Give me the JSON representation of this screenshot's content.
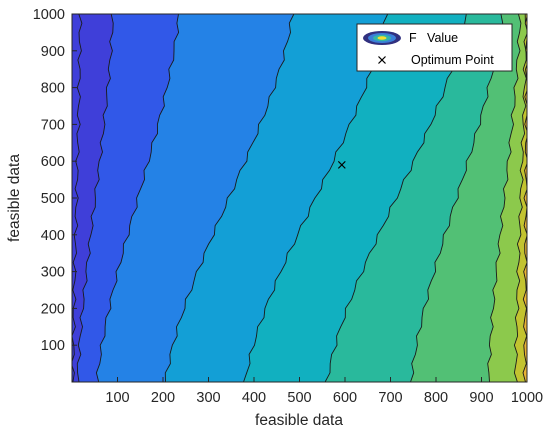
{
  "chart_data": {
    "type": "contour",
    "xlabel": "feasible data",
    "ylabel": "feasible data",
    "xlim": [
      0,
      1000
    ],
    "ylim": [
      0,
      1000
    ],
    "xticks": [
      100,
      200,
      300,
      400,
      500,
      600,
      700,
      800,
      900,
      1000
    ],
    "yticks": [
      100,
      200,
      300,
      400,
      500,
      600,
      700,
      800,
      900,
      1000
    ],
    "grid": false,
    "colormap": "parula",
    "legend": {
      "placement": "top-right",
      "entries": [
        {
          "label": "F   Value",
          "marker": "filled-contour"
        },
        {
          "label": "Optimum Point",
          "marker": "x"
        }
      ]
    },
    "optimum_point": {
      "x": 593,
      "y": 590
    },
    "level_colors": [
      "#4a4ee3",
      "#2e77e4",
      "#1b97dc",
      "#0eaac8",
      "#21b5a8",
      "#3dbd84",
      "#6ec75e",
      "#a9c63e",
      "#d3bd2c",
      "#f3b23a"
    ],
    "level_boundaries": [
      {
        "bottom_x": 2,
        "top_x": 18,
        "color": "#3f3fd9"
      },
      {
        "bottom_x": 12,
        "top_x": 90,
        "color": "#3158e8"
      },
      {
        "bottom_x": 55,
        "top_x": 235,
        "color": "#2482e6"
      },
      {
        "bottom_x": 205,
        "top_x": 485,
        "color": "#139fd6"
      },
      {
        "bottom_x": 380,
        "top_x": 690,
        "color": "#11b0c0"
      },
      {
        "bottom_x": 560,
        "top_x": 865,
        "color": "#29b99c"
      },
      {
        "bottom_x": 745,
        "top_x": 945,
        "color": "#52c075"
      },
      {
        "bottom_x": 915,
        "top_x": 985,
        "color": "#8cc94c"
      },
      {
        "bottom_x": 975,
        "top_x": 998,
        "color": "#c2c330"
      },
      {
        "bottom_x": 995,
        "top_x": 1000,
        "color": "#eab335"
      }
    ]
  }
}
